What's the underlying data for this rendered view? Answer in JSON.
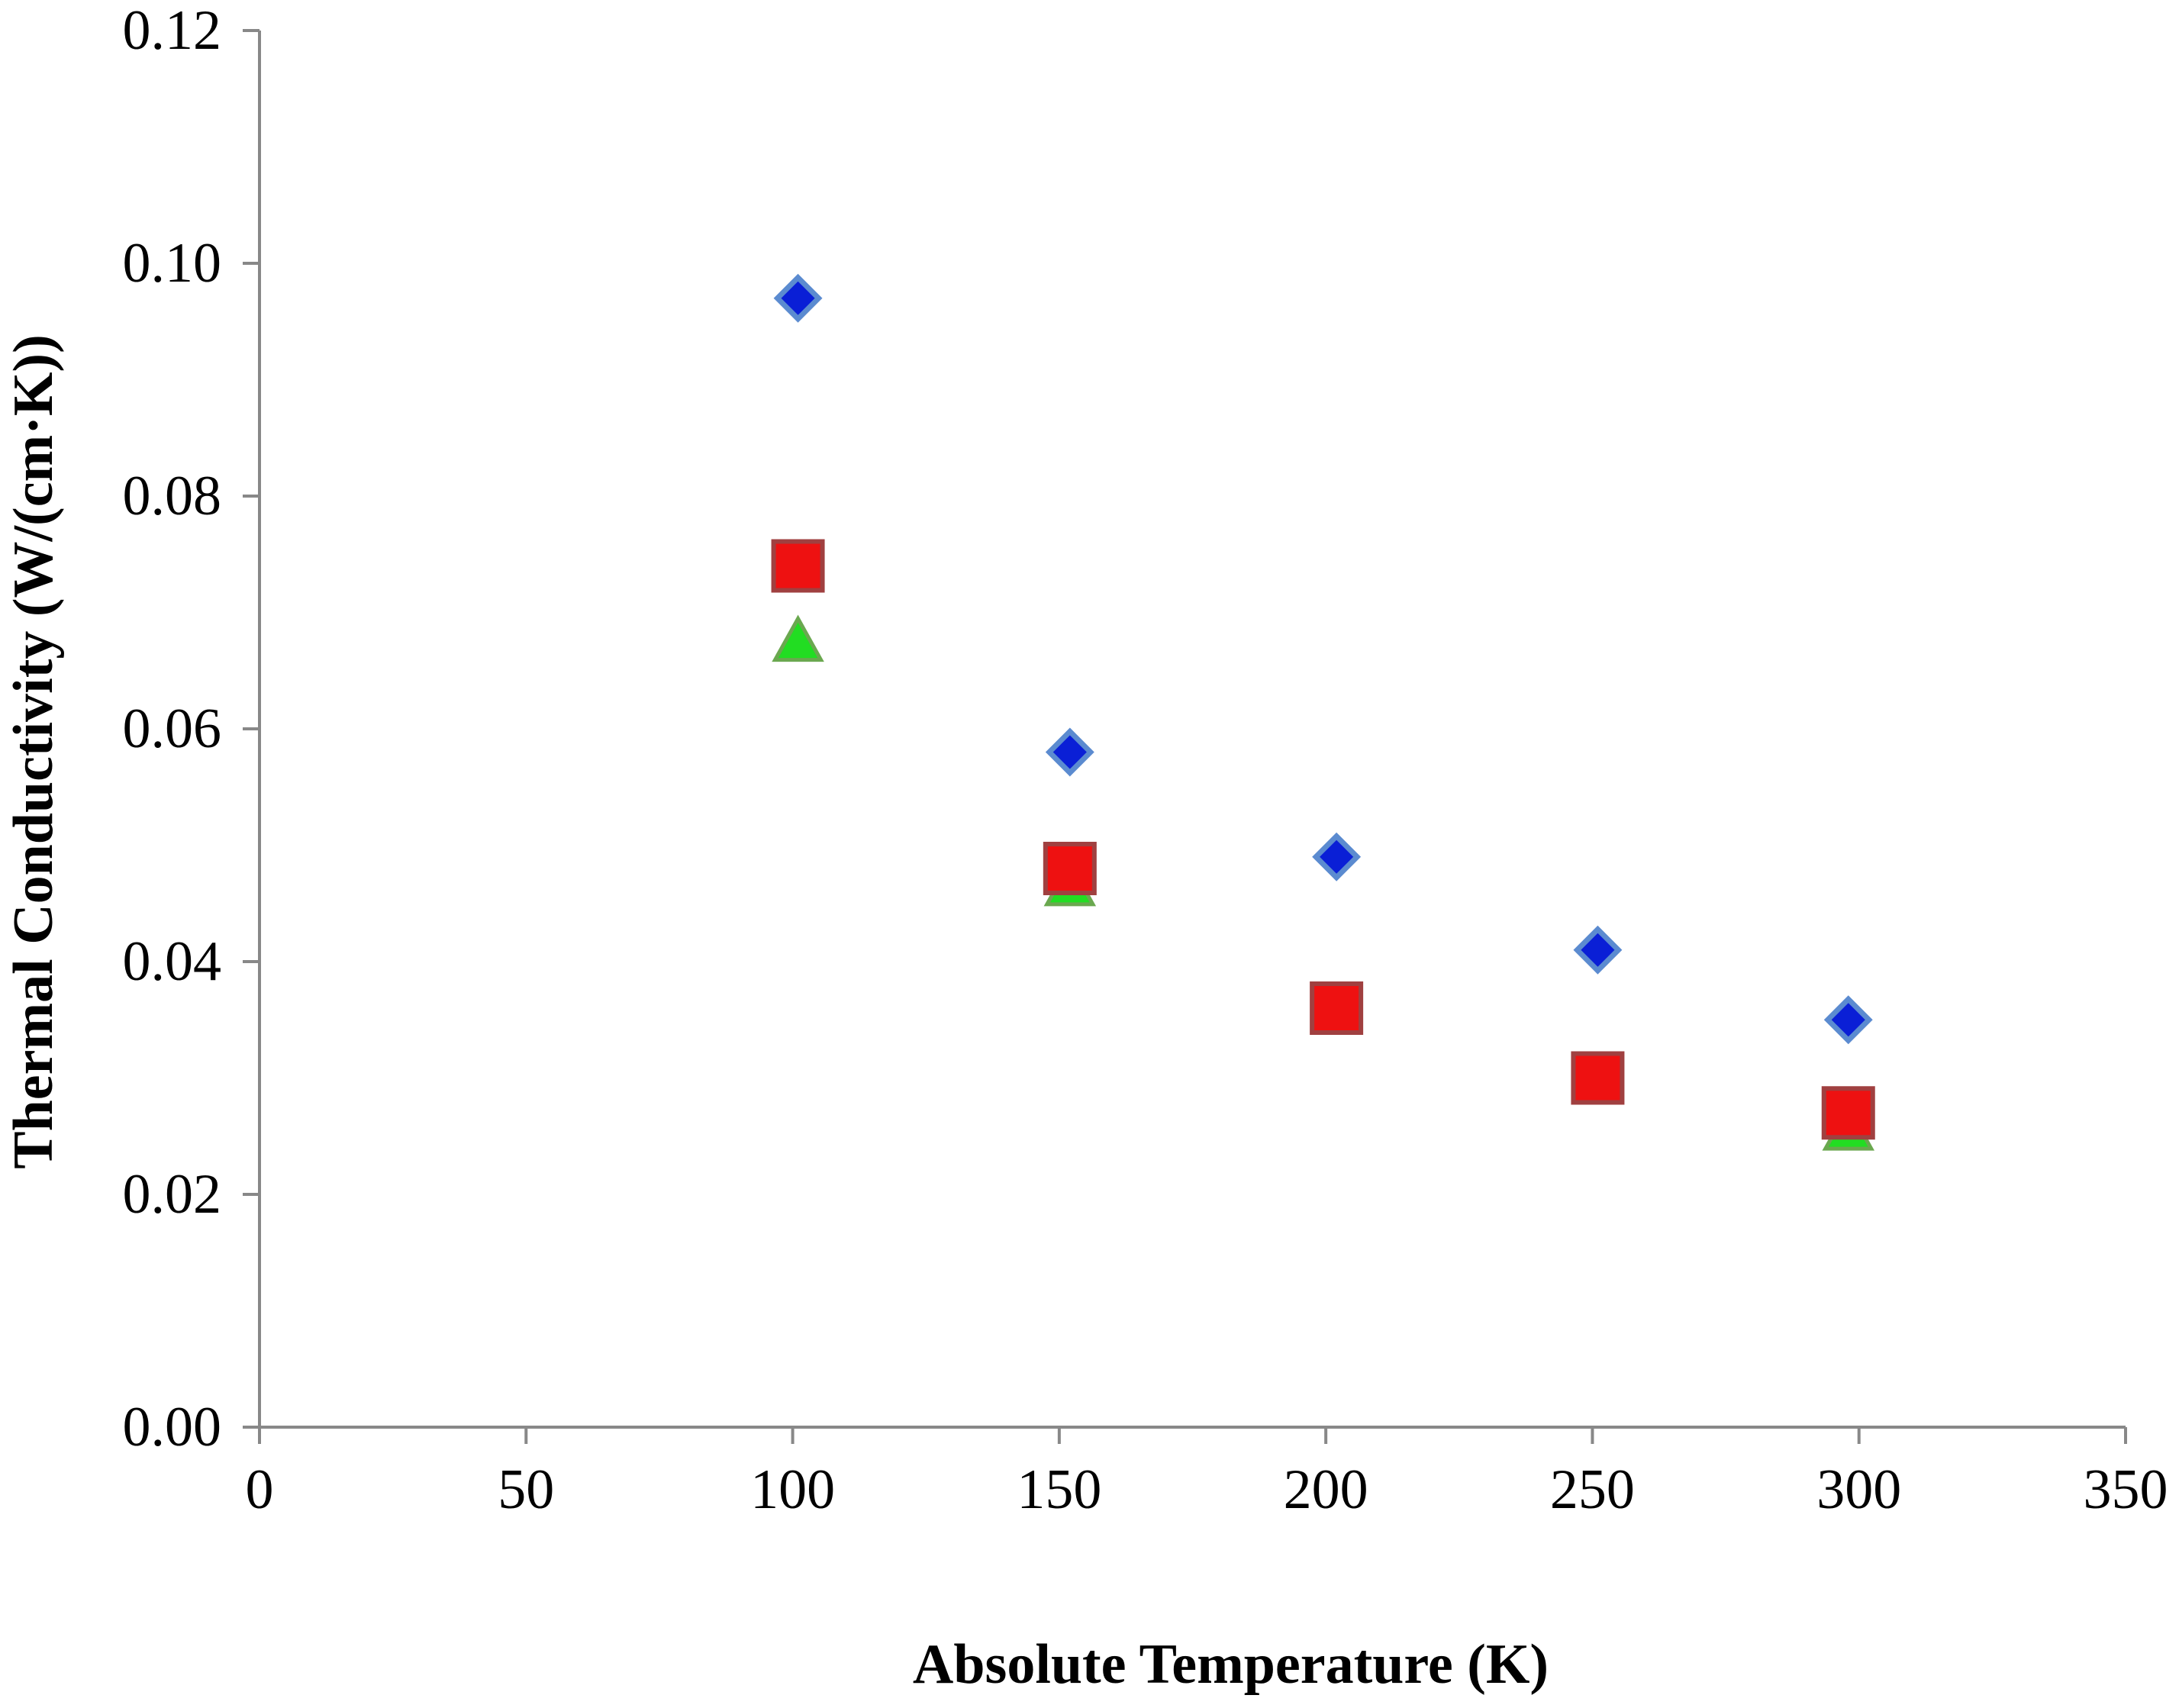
{
  "chart_data": {
    "type": "scatter",
    "title": "",
    "xlabel": "Absolute Temperature (K)",
    "ylabel": "Thermal Conductivity (W/(cm·K))",
    "xlim": [
      0,
      350
    ],
    "ylim": [
      0,
      0.12
    ],
    "xticks": [
      0,
      50,
      100,
      150,
      200,
      250,
      300,
      350
    ],
    "xtick_labels": [
      "0",
      "50",
      "100",
      "150",
      "200",
      "250",
      "300",
      "350"
    ],
    "yticks": [
      0,
      0.02,
      0.04,
      0.06,
      0.08,
      0.1,
      0.12
    ],
    "ytick_labels": [
      "0.00",
      "0.02",
      "0.04",
      "0.06",
      "0.08",
      "0.10",
      "0.12"
    ],
    "grid": false,
    "legend": "none",
    "series": [
      {
        "marker": "diamond",
        "color": "#0a1fd6",
        "edge_color": "#5b8bd0",
        "x": [
          101,
          152,
          202,
          251,
          298
        ],
        "y": [
          0.097,
          0.058,
          0.049,
          0.041,
          0.035
        ]
      },
      {
        "marker": "triangle",
        "color": "#22dd22",
        "edge_color": "#6aa84f",
        "x": [
          101,
          152,
          202,
          251,
          298
        ],
        "y": [
          0.0675,
          0.0465,
          0.0355,
          0.0295,
          0.0255
        ]
      },
      {
        "marker": "square",
        "color": "#ee1111",
        "edge_color": "#a04040",
        "x": [
          101,
          152,
          202,
          251,
          298
        ],
        "y": [
          0.074,
          0.048,
          0.036,
          0.03,
          0.027
        ]
      }
    ]
  }
}
